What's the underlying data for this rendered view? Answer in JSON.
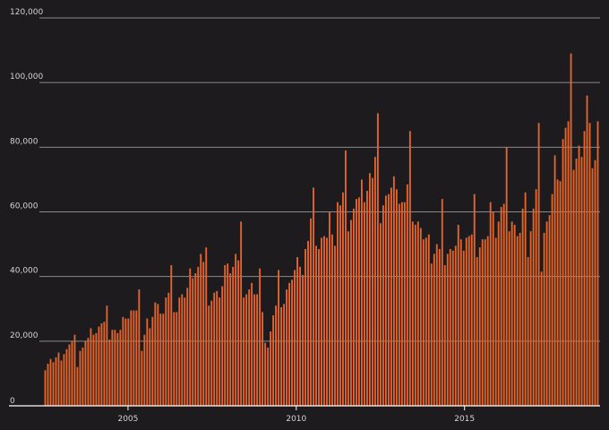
{
  "chart_data": {
    "type": "bar",
    "title": "",
    "xlabel": "",
    "ylabel": "",
    "bar_color": "#e8652a",
    "background": "#1d1b1d",
    "grid_color": "#8a8a8a",
    "grid": true,
    "ylim": [
      0,
      120000
    ],
    "y_ticks": [
      0,
      20000,
      40000,
      60000,
      80000,
      100000,
      120000
    ],
    "y_tick_labels": [
      "0",
      "20,000",
      "40,000",
      "60,000",
      "80,000",
      "100,000",
      "120,000"
    ],
    "x_ticks": [
      2005,
      2010,
      2015
    ],
    "x_tick_labels": [
      "2005",
      "2010",
      "2015"
    ],
    "x_start": "2002-07",
    "x_end": "2018-12",
    "values": [
      11000,
      13000,
      14500,
      13500,
      15000,
      16500,
      14000,
      16000,
      17500,
      19000,
      20000,
      22000,
      12000,
      17000,
      18000,
      20000,
      21000,
      24000,
      22000,
      22500,
      24500,
      25500,
      26000,
      31000,
      20500,
      23500,
      23500,
      22500,
      23500,
      27500,
      27000,
      27000,
      29500,
      29500,
      29500,
      36000,
      17000,
      22000,
      27000,
      24000,
      27500,
      32000,
      31500,
      28500,
      28500,
      33500,
      35000,
      43500,
      29000,
      29000,
      33500,
      34500,
      33500,
      36500,
      42500,
      39500,
      41000,
      43000,
      47000,
      44500,
      49000,
      31000,
      32500,
      35000,
      35500,
      33500,
      37000,
      43500,
      44000,
      41000,
      43000,
      47000,
      45000,
      57000,
      33500,
      34500,
      36000,
      38000,
      34500,
      34500,
      42500,
      29000,
      19500,
      18000,
      23000,
      28000,
      31000,
      42000,
      30500,
      31500,
      36000,
      38000,
      39000,
      42000,
      46000,
      43000,
      40500,
      48500,
      51000,
      58000,
      67500,
      49500,
      48500,
      52000,
      52500,
      52000,
      60000,
      53000,
      49500,
      63000,
      62000,
      66000,
      79000,
      54000,
      57500,
      61000,
      64000,
      64500,
      70000,
      63000,
      66500,
      72000,
      70500,
      77000,
      90500,
      56500,
      62000,
      65000,
      65500,
      67500,
      71000,
      67000,
      62500,
      63000,
      63000,
      68500,
      85000,
      57000,
      56000,
      57000,
      55000,
      51500,
      52000,
      53000,
      44000,
      47000,
      50000,
      48500,
      64000,
      43500,
      47000,
      48500,
      48000,
      49500,
      56000,
      51500,
      48000,
      52000,
      52500,
      53000,
      65500,
      46000,
      49000,
      51500,
      51500,
      52500,
      63000,
      60000,
      52000,
      57000,
      61500,
      62500,
      80000,
      54000,
      57000,
      56000,
      52500,
      53500,
      61000,
      66000,
      46000,
      54000,
      61000,
      67000,
      87500,
      41500,
      53500,
      57000,
      59000,
      65500,
      77500,
      70000,
      69500,
      82500,
      86000,
      88000,
      109000,
      73000,
      76500,
      80500,
      77000,
      85000,
      96000,
      87500,
      73500,
      76000,
      88000
    ]
  }
}
